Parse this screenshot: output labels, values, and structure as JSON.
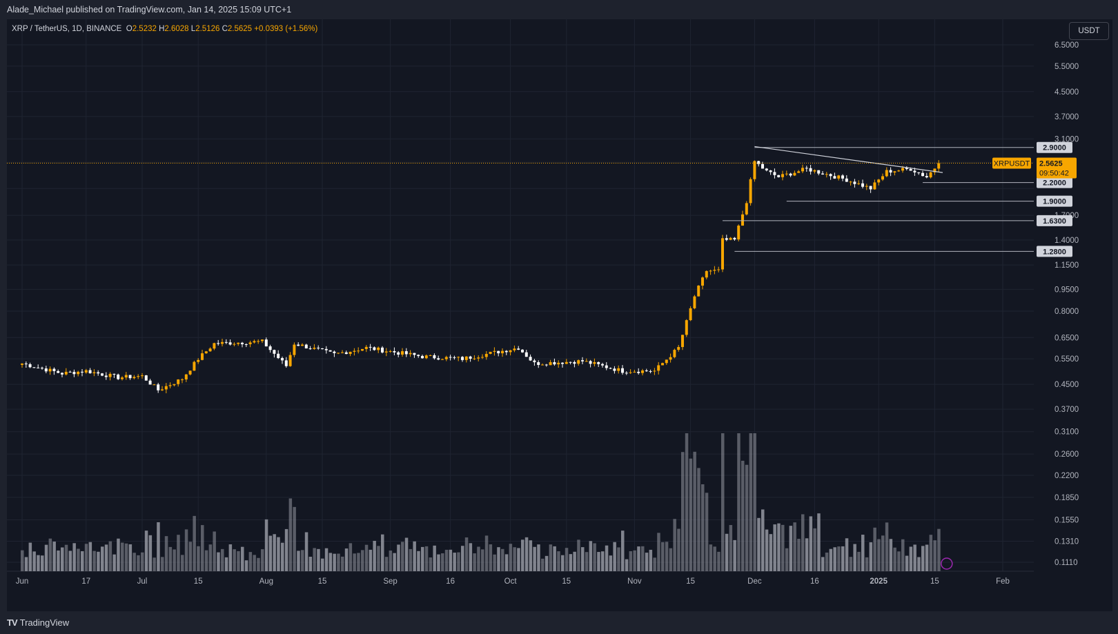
{
  "header": {
    "published": "Alade_Michael published on TradingView.com, Jan 14, 2025 15:09 UTC+1"
  },
  "legend": {
    "symbol": "XRP / TetherUS, 1D, BINANCE",
    "o_label": "O",
    "o": "2.5232",
    "h_label": "H",
    "h": "2.6028",
    "l_label": "L",
    "l": "2.5126",
    "c_label": "C",
    "c": "2.5625",
    "change": "+0.0393 (+1.56%)"
  },
  "currency": "USDT",
  "footer": {
    "brand": "TradingView"
  },
  "colors": {
    "up": "#f7a600",
    "down": "#ffffff",
    "bg": "#131722",
    "grid": "#1f2431",
    "volume": "#9598a1"
  },
  "chart_data": {
    "type": "candlestick",
    "scale": "log",
    "y_ticks": [
      6.5,
      5.5,
      4.5,
      3.7,
      3.1,
      2.58,
      2.1,
      1.7,
      1.4,
      1.15,
      0.95,
      0.8,
      0.65,
      0.55,
      0.45,
      0.37,
      0.31,
      0.26,
      0.22,
      0.185,
      0.155,
      0.131,
      0.111
    ],
    "y_tick_labels": [
      "6.5000",
      "5.5000",
      "4.5000",
      "3.7000",
      "3.1000",
      "",
      "",
      "1.7000",
      "1.4000",
      "1.1500",
      "0.9500",
      "0.8000",
      "0.6500",
      "0.5500",
      "0.4500",
      "0.3700",
      "0.3100",
      "0.2600",
      "0.2200",
      "0.1850",
      "0.1550",
      "0.1310",
      "0.1110"
    ],
    "x_ticks": [
      {
        "label": "Jun",
        "day": 0
      },
      {
        "label": "17",
        "day": 16
      },
      {
        "label": "Jul",
        "day": 30
      },
      {
        "label": "15",
        "day": 44
      },
      {
        "label": "Aug",
        "day": 61
      },
      {
        "label": "15",
        "day": 75
      },
      {
        "label": "Sep",
        "day": 92
      },
      {
        "label": "16",
        "day": 107
      },
      {
        "label": "Oct",
        "day": 122
      },
      {
        "label": "15",
        "day": 136
      },
      {
        "label": "Nov",
        "day": 153
      },
      {
        "label": "15",
        "day": 167
      },
      {
        "label": "Dec",
        "day": 183
      },
      {
        "label": "16",
        "day": 198
      },
      {
        "label": "2025",
        "day": 214
      },
      {
        "label": "15",
        "day": 228
      },
      {
        "label": "Feb",
        "day": 245
      }
    ],
    "levels": [
      {
        "price": 2.9,
        "label": "2.9000",
        "from_day": 183
      },
      {
        "price": 2.2,
        "label": "2.2000",
        "from_day": 225
      },
      {
        "price": 1.9,
        "label": "1.9000",
        "from_day": 191
      },
      {
        "price": 1.63,
        "label": "1.6300",
        "from_day": 175
      },
      {
        "price": 1.28,
        "label": "1.2800",
        "from_day": 178
      }
    ],
    "trendline": {
      "from": {
        "day": 183,
        "price": 2.92
      },
      "to": {
        "day": 230,
        "price": 2.38
      }
    },
    "current": {
      "symbol": "XRPUSDT",
      "price": 2.5625,
      "label": "2.5625",
      "countdown": "09:50:42"
    },
    "anchors": [
      {
        "day": 0,
        "price": 0.53
      },
      {
        "day": 10,
        "price": 0.49
      },
      {
        "day": 16,
        "price": 0.5
      },
      {
        "day": 24,
        "price": 0.475
      },
      {
        "day": 30,
        "price": 0.48
      },
      {
        "day": 34,
        "price": 0.43
      },
      {
        "day": 40,
        "price": 0.47
      },
      {
        "day": 44,
        "price": 0.55
      },
      {
        "day": 48,
        "price": 0.62
      },
      {
        "day": 60,
        "price": 0.63
      },
      {
        "day": 66,
        "price": 0.52
      },
      {
        "day": 68,
        "price": 0.62
      },
      {
        "day": 78,
        "price": 0.57
      },
      {
        "day": 86,
        "price": 0.6
      },
      {
        "day": 100,
        "price": 0.56
      },
      {
        "day": 110,
        "price": 0.55
      },
      {
        "day": 124,
        "price": 0.6
      },
      {
        "day": 128,
        "price": 0.53
      },
      {
        "day": 140,
        "price": 0.54
      },
      {
        "day": 150,
        "price": 0.5
      },
      {
        "day": 158,
        "price": 0.5
      },
      {
        "day": 164,
        "price": 0.6
      },
      {
        "day": 168,
        "price": 0.9
      },
      {
        "day": 171,
        "price": 1.1
      },
      {
        "day": 174,
        "price": 1.1
      },
      {
        "day": 175,
        "price": 1.4
      },
      {
        "day": 178,
        "price": 1.4
      },
      {
        "day": 181,
        "price": 1.9
      },
      {
        "day": 183,
        "price": 2.6
      },
      {
        "day": 186,
        "price": 2.4
      },
      {
        "day": 189,
        "price": 2.3
      },
      {
        "day": 196,
        "price": 2.45
      },
      {
        "day": 201,
        "price": 2.35
      },
      {
        "day": 206,
        "price": 2.25
      },
      {
        "day": 212,
        "price": 2.1
      },
      {
        "day": 216,
        "price": 2.4
      },
      {
        "day": 222,
        "price": 2.45
      },
      {
        "day": 226,
        "price": 2.3
      },
      {
        "day": 229,
        "price": 2.56
      }
    ]
  }
}
